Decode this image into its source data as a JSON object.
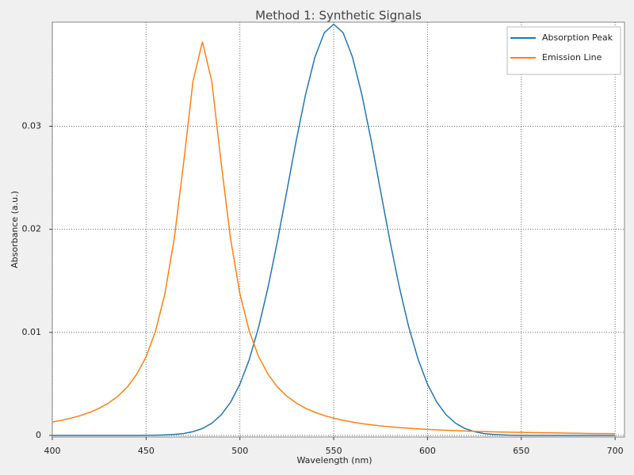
{
  "chart_data": {
    "type": "line",
    "title": "Method 1: Synthetic Signals",
    "x_label": "Wavelength (nm)",
    "y_label": "Absorbance (a.u.)",
    "x": [
      400,
      405,
      410,
      415,
      420,
      425,
      430,
      435,
      440,
      445,
      450,
      455,
      460,
      465,
      470,
      475,
      480,
      485,
      490,
      495,
      500,
      505,
      510,
      515,
      520,
      525,
      530,
      535,
      540,
      545,
      550,
      555,
      560,
      565,
      570,
      575,
      580,
      585,
      590,
      595,
      600,
      605,
      610,
      615,
      620,
      625,
      630,
      635,
      640,
      645,
      650,
      655,
      660,
      665,
      670,
      675,
      680,
      685,
      690,
      695,
      700
    ],
    "series": [
      {
        "name": "Absorption Peak",
        "color": "#1f77b4",
        "values": [
          0,
          0,
          0,
          0,
          0,
          0,
          0,
          0,
          0,
          0,
          1e-05,
          2e-05,
          5e-05,
          0.0001,
          0.00019,
          0.00037,
          0.00067,
          0.00118,
          0.00199,
          0.00321,
          0.00497,
          0.00738,
          0.01052,
          0.01438,
          0.01885,
          0.0237,
          0.02859,
          0.03308,
          0.03671,
          0.03908,
          0.0399,
          0.03908,
          0.03671,
          0.03308,
          0.02859,
          0.0237,
          0.01885,
          0.01438,
          0.01052,
          0.00738,
          0.00497,
          0.00321,
          0.00199,
          0.00118,
          0.00067,
          0.00037,
          0.00019,
          0.0001,
          5e-05,
          2e-05,
          1e-05,
          0,
          0,
          0,
          0,
          0,
          0,
          0,
          0,
          0,
          0
        ]
      },
      {
        "name": "Emission Line",
        "color": "#ff7f0e",
        "values": [
          0.0013,
          0.00147,
          0.00168,
          0.00193,
          0.00225,
          0.00264,
          0.00315,
          0.00382,
          0.00471,
          0.00593,
          0.00764,
          0.01011,
          0.01375,
          0.0191,
          0.02645,
          0.03438,
          0.0382,
          0.03438,
          0.02645,
          0.0191,
          0.01375,
          0.01011,
          0.00764,
          0.00593,
          0.00471,
          0.00382,
          0.00315,
          0.00264,
          0.00225,
          0.00193,
          0.00168,
          0.00147,
          0.0013,
          0.00115,
          0.00103,
          0.00093,
          0.00084,
          0.00076,
          0.0007,
          0.00064,
          0.00059,
          0.00054,
          0.0005,
          0.00047,
          0.00043,
          0.0004,
          0.00038,
          0.00035,
          0.00033,
          0.00031,
          0.0003,
          0.00028,
          0.00026,
          0.00025,
          0.00024,
          0.00022,
          0.00021,
          0.0002,
          0.00019,
          0.00019,
          0.00018
        ]
      }
    ],
    "xlim": [
      400,
      705
    ],
    "ylim": [
      -0.00015,
      0.0401
    ],
    "xticks": [
      400,
      450,
      500,
      550,
      600,
      650,
      700
    ],
    "yticks": [
      0,
      0.01,
      0.02,
      0.03
    ],
    "grid": true,
    "legend": "upper right"
  }
}
